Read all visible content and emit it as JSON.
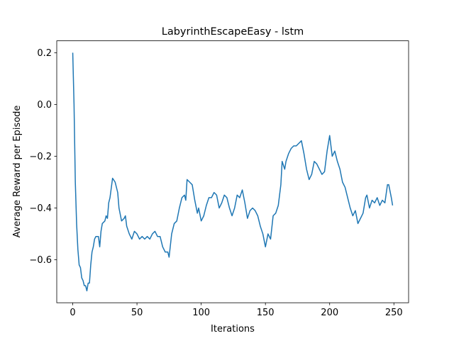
{
  "chart_data": {
    "type": "line",
    "title": "LabyrinthEscapeEasy - lstm",
    "xlabel": "Iterations",
    "ylabel": "Average Reward per Episode",
    "color": "#1f77b4",
    "x": [
      0,
      1,
      2,
      3,
      4,
      5,
      6,
      7,
      8,
      9,
      10,
      11,
      12,
      13,
      14,
      15,
      16,
      17,
      18,
      20,
      21,
      22,
      23,
      25,
      26,
      27,
      28,
      29,
      31,
      33,
      35,
      36,
      38,
      40,
      41,
      42,
      44,
      46,
      48,
      50,
      52,
      54,
      56,
      58,
      60,
      62,
      64,
      66,
      68,
      70,
      72,
      74,
      75,
      77,
      79,
      81,
      83,
      85,
      87,
      88,
      89,
      91,
      93,
      95,
      97,
      98,
      100,
      102,
      104,
      106,
      108,
      110,
      112,
      114,
      116,
      118,
      120,
      122,
      124,
      126,
      128,
      130,
      132,
      134,
      136,
      138,
      140,
      142,
      144,
      146,
      148,
      150,
      152,
      154,
      156,
      158,
      160,
      162,
      163,
      165,
      166,
      168,
      170,
      172,
      174,
      176,
      178,
      180,
      182,
      184,
      186,
      188,
      190,
      192,
      194,
      196,
      198,
      200,
      202,
      204,
      206,
      208,
      210,
      212,
      214,
      216,
      218,
      220,
      222,
      224,
      226,
      228,
      229,
      231,
      233,
      235,
      237,
      239,
      241,
      243,
      245,
      246,
      248,
      249
    ],
    "values": [
      0.2,
      0.0,
      -0.3,
      -0.46,
      -0.56,
      -0.62,
      -0.63,
      -0.67,
      -0.68,
      -0.7,
      -0.7,
      -0.72,
      -0.69,
      -0.69,
      -0.62,
      -0.57,
      -0.55,
      -0.52,
      -0.51,
      -0.51,
      -0.55,
      -0.49,
      -0.46,
      -0.45,
      -0.43,
      -0.44,
      -0.38,
      -0.36,
      -0.285,
      -0.3,
      -0.34,
      -0.4,
      -0.45,
      -0.44,
      -0.43,
      -0.47,
      -0.5,
      -0.52,
      -0.49,
      -0.5,
      -0.52,
      -0.51,
      -0.52,
      -0.51,
      -0.52,
      -0.5,
      -0.49,
      -0.51,
      -0.51,
      -0.55,
      -0.57,
      -0.57,
      -0.59,
      -0.5,
      -0.46,
      -0.45,
      -0.4,
      -0.36,
      -0.35,
      -0.37,
      -0.29,
      -0.3,
      -0.31,
      -0.37,
      -0.42,
      -0.4,
      -0.45,
      -0.43,
      -0.39,
      -0.36,
      -0.36,
      -0.34,
      -0.35,
      -0.4,
      -0.38,
      -0.35,
      -0.36,
      -0.4,
      -0.43,
      -0.4,
      -0.35,
      -0.36,
      -0.33,
      -0.38,
      -0.44,
      -0.41,
      -0.4,
      -0.41,
      -0.43,
      -0.47,
      -0.5,
      -0.55,
      -0.5,
      -0.52,
      -0.43,
      -0.42,
      -0.39,
      -0.31,
      -0.22,
      -0.25,
      -0.22,
      -0.19,
      -0.17,
      -0.16,
      -0.16,
      -0.15,
      -0.14,
      -0.19,
      -0.25,
      -0.29,
      -0.27,
      -0.22,
      -0.23,
      -0.25,
      -0.27,
      -0.26,
      -0.18,
      -0.12,
      -0.2,
      -0.18,
      -0.22,
      -0.25,
      -0.3,
      -0.32,
      -0.36,
      -0.4,
      -0.43,
      -0.41,
      -0.46,
      -0.44,
      -0.42,
      -0.36,
      -0.35,
      -0.4,
      -0.37,
      -0.38,
      -0.36,
      -0.39,
      -0.37,
      -0.38,
      -0.31,
      -0.31,
      -0.36,
      -0.39
    ],
    "xlim": [
      -12.45,
      261.45
    ],
    "ylim": [
      -0.766,
      0.246
    ],
    "xticks": [
      0,
      50,
      100,
      150,
      200,
      250
    ],
    "yticks": [
      {
        "value": -0.6,
        "label": "−0.6"
      },
      {
        "value": -0.4,
        "label": "−0.4"
      },
      {
        "value": -0.2,
        "label": "−0.2"
      },
      {
        "value": 0,
        "label": "0.0"
      },
      0.2
    ]
  }
}
